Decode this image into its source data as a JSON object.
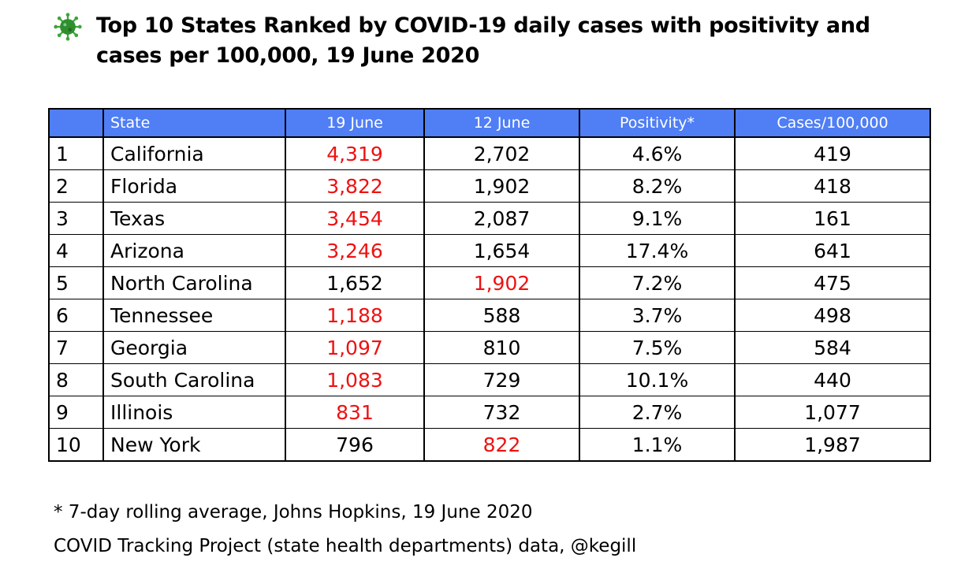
{
  "title": "Top 10 States Ranked by COVID-19 daily cases with positivity and cases per 100,000, 19 June 2020",
  "icon": "virus-icon",
  "colors": {
    "header_bg": "#4f7ef5",
    "header_text": "#ffffff",
    "highlight": "#ee1111",
    "icon_green": "#3aa63a"
  },
  "table": {
    "headers": [
      "",
      "State",
      "19 June",
      "12 June",
      "Positivity*",
      "Cases/100,000"
    ],
    "rows": [
      {
        "rank": "1",
        "state": "California",
        "june19": "4,319",
        "june12": "2,702",
        "positivity": "4.6%",
        "per100k": "419",
        "highlight": "june19"
      },
      {
        "rank": "2",
        "state": "Florida",
        "june19": "3,822",
        "june12": "1,902",
        "positivity": "8.2%",
        "per100k": "418",
        "highlight": "june19"
      },
      {
        "rank": "3",
        "state": "Texas",
        "june19": "3,454",
        "june12": "2,087",
        "positivity": "9.1%",
        "per100k": "161",
        "highlight": "june19"
      },
      {
        "rank": "4",
        "state": "Arizona",
        "june19": "3,246",
        "june12": "1,654",
        "positivity": "17.4%",
        "per100k": "641",
        "highlight": "june19"
      },
      {
        "rank": "5",
        "state": "North Carolina",
        "june19": "1,652",
        "june12": "1,902",
        "positivity": "7.2%",
        "per100k": "475",
        "highlight": "june12"
      },
      {
        "rank": "6",
        "state": "Tennessee",
        "june19": "1,188",
        "june12": "588",
        "positivity": "3.7%",
        "per100k": "498",
        "highlight": "june19"
      },
      {
        "rank": "7",
        "state": "Georgia",
        "june19": "1,097",
        "june12": "810",
        "positivity": "7.5%",
        "per100k": "584",
        "highlight": "june19"
      },
      {
        "rank": "8",
        "state": "South Carolina",
        "june19": "1,083",
        "june12": "729",
        "positivity": "10.1%",
        "per100k": "440",
        "highlight": "june19"
      },
      {
        "rank": "9",
        "state": "Illinois",
        "june19": "831",
        "june12": "732",
        "positivity": "2.7%",
        "per100k": "1,077",
        "highlight": "june19"
      },
      {
        "rank": "10",
        "state": "New York",
        "june19": "796",
        "june12": "822",
        "positivity": "1.1%",
        "per100k": "1,987",
        "highlight": "june12"
      }
    ]
  },
  "footnotes": {
    "positivity_note": "* 7-day rolling average, Johns Hopkins, 19 June 2020",
    "source": "COVID Tracking Project (state health departments) data, @kegill"
  }
}
